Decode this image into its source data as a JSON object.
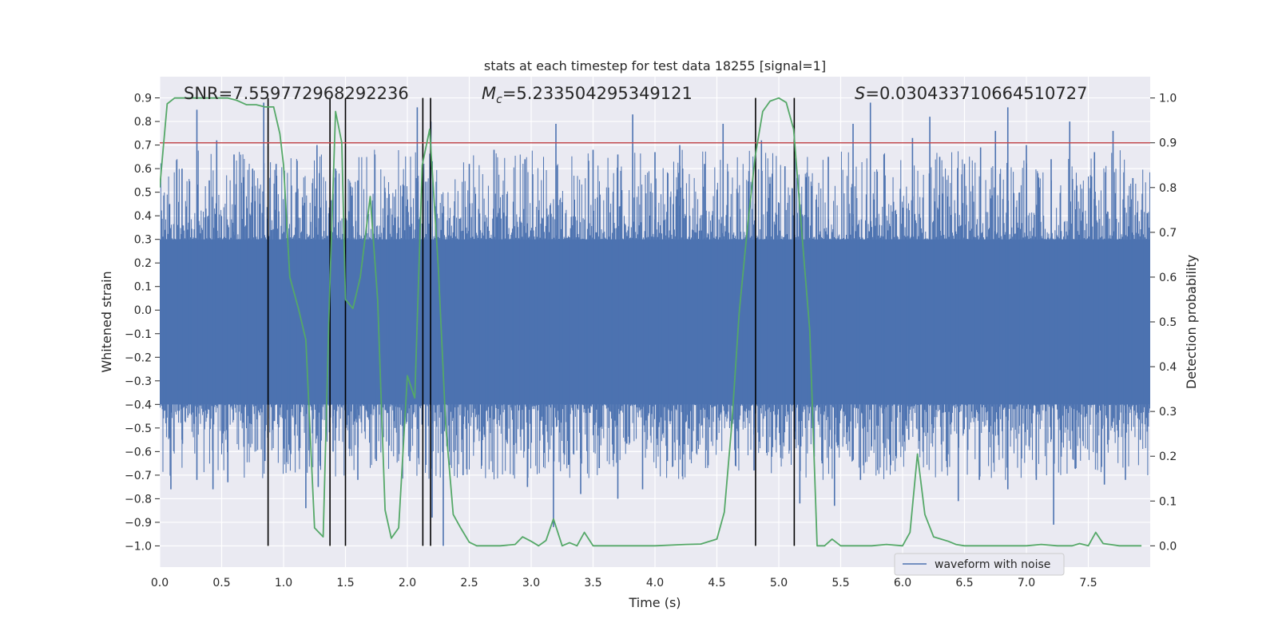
{
  "chart_data": {
    "type": "line",
    "title": "stats at each timestep for test data 18255 [signal=1]",
    "xlabel": "Time (s)",
    "ylabel_left": "Whitened strain",
    "ylabel_right": "Detection probability",
    "xlim": [
      0.0,
      8.0
    ],
    "ylim_left": [
      -1.09,
      0.99
    ],
    "ylim_right": [
      -0.0476,
      1.0476
    ],
    "x_ticks": [
      "0.0",
      "0.5",
      "1.0",
      "1.5",
      "2.0",
      "2.5",
      "3.0",
      "3.5",
      "4.0",
      "4.5",
      "5.0",
      "5.5",
      "6.0",
      "6.5",
      "7.0",
      "7.5"
    ],
    "y_left_ticks": [
      "0.9",
      "0.8",
      "0.7",
      "0.6",
      "0.5",
      "0.4",
      "0.3",
      "0.2",
      "0.1",
      "0.0",
      "−0.1",
      "−0.2",
      "−0.3",
      "−0.4",
      "−0.5",
      "−0.6",
      "−0.7",
      "−0.8",
      "−0.9",
      "−1.0"
    ],
    "y_right_ticks": [
      "1.0",
      "0.9",
      "0.8",
      "0.7",
      "0.6",
      "0.5",
      "0.4",
      "0.3",
      "0.2",
      "0.1",
      "0.0"
    ],
    "grid": true,
    "annotations": {
      "snr": "SNR=7.559772968292236",
      "mc_symbol": "M",
      "mc_sub": "c",
      "mc_value": "=5.233504295349121",
      "s_symbol": "S",
      "s_value": "=0.030433710664510727"
    },
    "threshold_right": 0.9,
    "vertical_lines_x": [
      0.875,
      1.375,
      1.5,
      2.125,
      2.1875,
      4.8125,
      5.125
    ],
    "series": [
      {
        "name": "waveform with noise",
        "axis": "left",
        "color": "#4c72b0",
        "envelope_band": [
          -0.4,
          0.3
        ],
        "spikes": [
          {
            "x": 0.08,
            "y": 0.45
          },
          {
            "x": 0.18,
            "y": 0.6
          },
          {
            "x": 0.3,
            "y": 0.85
          },
          {
            "x": 0.4,
            "y": 0.55
          },
          {
            "x": 0.46,
            "y": 0.72
          },
          {
            "x": 0.6,
            "y": 0.66
          },
          {
            "x": 0.75,
            "y": 0.6
          },
          {
            "x": 0.84,
            "y": 0.88
          },
          {
            "x": 0.94,
            "y": 0.62
          },
          {
            "x": 1.1,
            "y": 0.5
          },
          {
            "x": 1.27,
            "y": 0.7
          },
          {
            "x": 1.42,
            "y": 0.6
          },
          {
            "x": 1.6,
            "y": 0.55
          },
          {
            "x": 1.82,
            "y": 0.5
          },
          {
            "x": 2.08,
            "y": 0.86
          },
          {
            "x": 2.19,
            "y": 0.8
          },
          {
            "x": 2.5,
            "y": 0.62
          },
          {
            "x": 2.7,
            "y": 0.68
          },
          {
            "x": 2.95,
            "y": 0.64
          },
          {
            "x": 3.2,
            "y": 0.79
          },
          {
            "x": 3.5,
            "y": 0.68
          },
          {
            "x": 3.7,
            "y": 0.66
          },
          {
            "x": 3.82,
            "y": 0.83
          },
          {
            "x": 4.0,
            "y": 0.67
          },
          {
            "x": 4.2,
            "y": 0.7
          },
          {
            "x": 4.4,
            "y": 0.62
          },
          {
            "x": 4.55,
            "y": 0.79
          },
          {
            "x": 4.86,
            "y": 0.72
          },
          {
            "x": 5.05,
            "y": 0.61
          },
          {
            "x": 5.4,
            "y": 0.65
          },
          {
            "x": 5.6,
            "y": 0.79
          },
          {
            "x": 5.74,
            "y": 0.88
          },
          {
            "x": 5.85,
            "y": 0.66
          },
          {
            "x": 6.08,
            "y": 0.73
          },
          {
            "x": 6.22,
            "y": 0.82
          },
          {
            "x": 6.3,
            "y": 0.65
          },
          {
            "x": 6.5,
            "y": 0.62
          },
          {
            "x": 6.63,
            "y": 0.69
          },
          {
            "x": 6.75,
            "y": 0.76
          },
          {
            "x": 6.85,
            "y": 0.86
          },
          {
            "x": 7.0,
            "y": 0.7
          },
          {
            "x": 7.2,
            "y": 0.64
          },
          {
            "x": 7.35,
            "y": 0.8
          },
          {
            "x": 7.55,
            "y": 0.67
          },
          {
            "x": 7.7,
            "y": 0.76
          },
          {
            "x": 7.86,
            "y": 0.56
          },
          {
            "x": 0.05,
            "y": -0.48
          },
          {
            "x": 0.09,
            "y": -0.76
          },
          {
            "x": 0.18,
            "y": -0.55
          },
          {
            "x": 0.3,
            "y": -0.72
          },
          {
            "x": 0.43,
            "y": -0.76
          },
          {
            "x": 0.55,
            "y": -0.73
          },
          {
            "x": 0.68,
            "y": -0.58
          },
          {
            "x": 0.85,
            "y": -0.64
          },
          {
            "x": 1.0,
            "y": -0.55
          },
          {
            "x": 1.18,
            "y": -0.84
          },
          {
            "x": 1.28,
            "y": -0.75
          },
          {
            "x": 1.4,
            "y": -0.6
          },
          {
            "x": 1.6,
            "y": -0.72
          },
          {
            "x": 1.75,
            "y": -0.64
          },
          {
            "x": 1.9,
            "y": -0.5
          },
          {
            "x": 2.02,
            "y": -0.64
          },
          {
            "x": 2.2,
            "y": -0.88
          },
          {
            "x": 2.29,
            "y": -1.0
          },
          {
            "x": 2.45,
            "y": -0.7
          },
          {
            "x": 2.6,
            "y": -0.66
          },
          {
            "x": 2.8,
            "y": -0.55
          },
          {
            "x": 2.97,
            "y": -0.75
          },
          {
            "x": 3.18,
            "y": -0.92
          },
          {
            "x": 3.4,
            "y": -0.78
          },
          {
            "x": 3.55,
            "y": -0.67
          },
          {
            "x": 3.7,
            "y": -0.8
          },
          {
            "x": 3.9,
            "y": -0.76
          },
          {
            "x": 4.1,
            "y": -0.64
          },
          {
            "x": 4.3,
            "y": -0.6
          },
          {
            "x": 4.5,
            "y": -0.55
          },
          {
            "x": 4.65,
            "y": -0.66
          },
          {
            "x": 4.8,
            "y": -0.68
          },
          {
            "x": 5.17,
            "y": -0.82
          },
          {
            "x": 5.35,
            "y": -0.65
          },
          {
            "x": 5.45,
            "y": -0.83
          },
          {
            "x": 5.66,
            "y": -0.72
          },
          {
            "x": 5.85,
            "y": -0.62
          },
          {
            "x": 6.05,
            "y": -0.55
          },
          {
            "x": 6.25,
            "y": -0.5
          },
          {
            "x": 6.45,
            "y": -0.81
          },
          {
            "x": 6.62,
            "y": -0.72
          },
          {
            "x": 6.85,
            "y": -0.76
          },
          {
            "x": 7.08,
            "y": -0.72
          },
          {
            "x": 7.22,
            "y": -0.91
          },
          {
            "x": 7.4,
            "y": -0.67
          },
          {
            "x": 7.63,
            "y": -0.74
          },
          {
            "x": 7.8,
            "y": -0.72
          },
          {
            "x": 7.92,
            "y": -0.55
          }
        ]
      },
      {
        "axis": "right",
        "color": "#55a868",
        "x": [
          0.0,
          0.06,
          0.12,
          0.18,
          0.25,
          0.4,
          0.55,
          0.62,
          0.7,
          0.78,
          0.85,
          0.92,
          0.97,
          1.0,
          1.05,
          1.12,
          1.18,
          1.25,
          1.32,
          1.37,
          1.42,
          1.47,
          1.5,
          1.56,
          1.62,
          1.7,
          1.76,
          1.82,
          1.87,
          1.93,
          2.0,
          2.06,
          2.12,
          2.18,
          2.25,
          2.31,
          2.37,
          2.43,
          2.5,
          2.56,
          2.62,
          2.75,
          2.87,
          2.93,
          3.0,
          3.06,
          3.12,
          3.18,
          3.25,
          3.31,
          3.37,
          3.43,
          3.5,
          3.56,
          3.62,
          3.75,
          4.0,
          4.25,
          4.37,
          4.5,
          4.56,
          4.62,
          4.68,
          4.75,
          4.81,
          4.87,
          4.93,
          5.0,
          5.06,
          5.12,
          5.18,
          5.25,
          5.31,
          5.37,
          5.43,
          5.5,
          5.62,
          5.75,
          5.87,
          6.0,
          6.06,
          6.12,
          6.18,
          6.25,
          6.31,
          6.37,
          6.43,
          6.5,
          6.62,
          6.75,
          6.87,
          7.0,
          7.12,
          7.25,
          7.37,
          7.43,
          7.5,
          7.56,
          7.62,
          7.75,
          7.87,
          7.93
        ],
        "y": [
          0.8,
          0.987,
          1.0,
          1.0,
          1.0,
          1.0,
          1.0,
          0.995,
          0.985,
          0.985,
          0.98,
          0.98,
          0.92,
          0.85,
          0.6,
          0.53,
          0.46,
          0.04,
          0.02,
          0.55,
          0.97,
          0.9,
          0.55,
          0.53,
          0.6,
          0.78,
          0.55,
          0.08,
          0.017,
          0.04,
          0.38,
          0.33,
          0.85,
          0.93,
          0.62,
          0.27,
          0.07,
          0.04,
          0.008,
          0.0,
          0.0,
          0.0,
          0.003,
          0.02,
          0.01,
          0.0,
          0.012,
          0.06,
          0.0,
          0.007,
          0.0,
          0.03,
          0.0,
          0.0,
          0.0,
          0.0,
          0.0,
          0.003,
          0.004,
          0.015,
          0.075,
          0.27,
          0.52,
          0.72,
          0.87,
          0.97,
          0.993,
          1.0,
          0.99,
          0.93,
          0.72,
          0.48,
          0.0,
          0.0,
          0.015,
          0.0,
          0.0,
          0.0,
          0.003,
          0.0,
          0.03,
          0.205,
          0.07,
          0.02,
          0.015,
          0.01,
          0.003,
          0.0,
          0.0,
          0.0,
          0.0,
          0.0,
          0.003,
          0.0,
          0.0,
          0.005,
          0.0,
          0.03,
          0.005,
          0.0,
          0.0,
          0.0
        ]
      }
    ],
    "legend_position": "lower-right"
  }
}
